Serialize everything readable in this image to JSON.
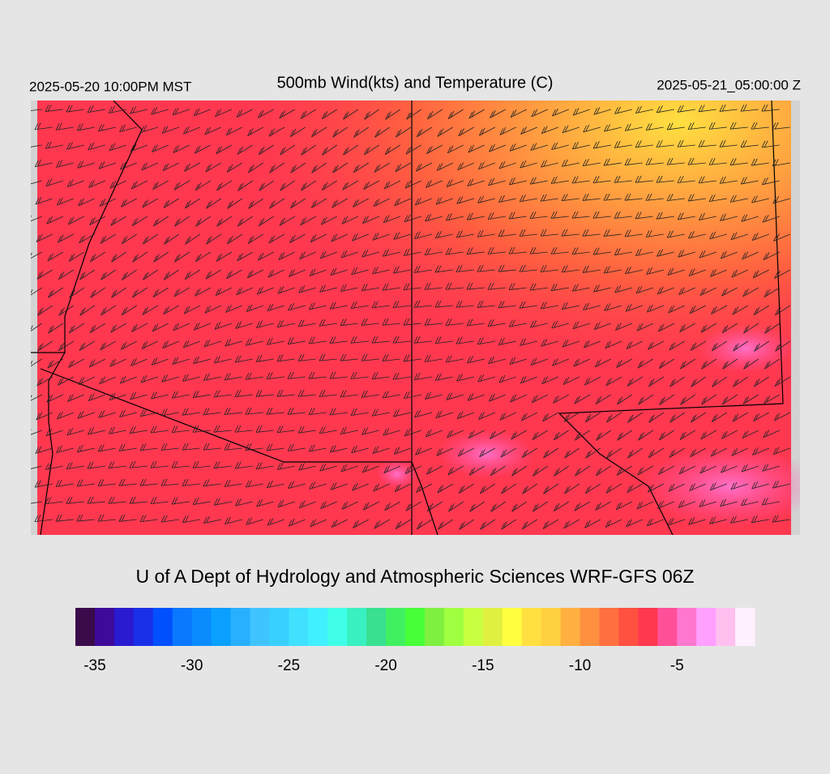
{
  "header": {
    "title": "500mb Wind(kts) and Temperature (C)",
    "local_time": "2025-05-20 10:00PM MST",
    "valid_time": "2025-05-21_05:00:00 Z"
  },
  "footer": {
    "credit": "U of A Dept of Hydrology and Atmospheric Sciences WRF-GFS 06Z"
  },
  "colorbar": {
    "range": [
      -36,
      -1
    ],
    "ticks": [
      -35,
      -30,
      -25,
      -20,
      -15,
      -10,
      -5
    ],
    "colors": [
      "#3a0a4a",
      "#3d0a99",
      "#2a1ad0",
      "#1a30e8",
      "#0050ff",
      "#0a78ff",
      "#0a8cff",
      "#0aa0ff",
      "#28b0ff",
      "#40c4ff",
      "#38d0ff",
      "#40e0ff",
      "#40f0ff",
      "#40ffe8",
      "#38f0c0",
      "#38e090",
      "#40f060",
      "#48ff38",
      "#80f040",
      "#a0ff40",
      "#c8ff40",
      "#e0f040",
      "#ffff40",
      "#ffe040",
      "#ffd040",
      "#ffb040",
      "#ff9040",
      "#ff7040",
      "#ff5040",
      "#ff3850",
      "#ff5098",
      "#ff78d0",
      "#ffa0ff",
      "#ffc0f0",
      "#fff0ff"
    ]
  }
}
